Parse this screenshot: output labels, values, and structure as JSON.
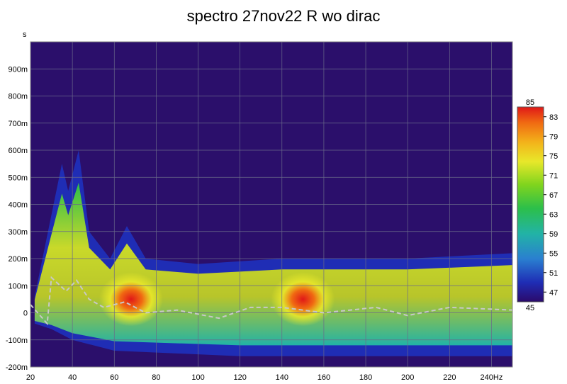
{
  "chart_data": {
    "type": "heatmap",
    "title": "spectro 27nov22 R wo dirac",
    "ylabel": "s",
    "x_ticks": [
      "20",
      "40",
      "60",
      "80",
      "100",
      "120",
      "140",
      "160",
      "180",
      "200",
      "220",
      "240Hz"
    ],
    "y_ticks": [
      "900m",
      "800m",
      "700m",
      "600m",
      "500m",
      "400m",
      "300m",
      "200m",
      "100m",
      "0",
      "-100m",
      "-200m"
    ],
    "xlim": [
      20,
      250
    ],
    "ylim": [
      -0.2,
      1.0
    ],
    "x_unit": "Hz",
    "y_unit": "s",
    "colorbar": {
      "min": 45,
      "max": 85,
      "ticks": [
        "83",
        "79",
        "75",
        "71",
        "67",
        "63",
        "59",
        "55",
        "51",
        "47"
      ],
      "colors": [
        "#2b0a6b",
        "#1f2db5",
        "#2a7fd0",
        "#22b3a6",
        "#2cbf4a",
        "#7fd41e",
        "#e8e82a",
        "#f3b21a",
        "#f06a12",
        "#e01818"
      ]
    },
    "background_color": "#2b0f6b",
    "grid": true,
    "legend": "right",
    "peak_hotspots": [
      {
        "freq_hz": 68,
        "time_s": 0.05,
        "level": 84
      },
      {
        "freq_hz": 150,
        "time_s": 0.05,
        "level": 82
      }
    ],
    "decay_envelope": [
      {
        "freq_hz": 22,
        "time_s": 0.06
      },
      {
        "freq_hz": 35,
        "time_s": 0.55
      },
      {
        "freq_hz": 38,
        "time_s": 0.45
      },
      {
        "freq_hz": 43,
        "time_s": 0.6
      },
      {
        "freq_hz": 48,
        "time_s": 0.3
      },
      {
        "freq_hz": 58,
        "time_s": 0.2
      },
      {
        "freq_hz": 66,
        "time_s": 0.32
      },
      {
        "freq_hz": 75,
        "time_s": 0.2
      },
      {
        "freq_hz": 100,
        "time_s": 0.18
      },
      {
        "freq_hz": 140,
        "time_s": 0.2
      },
      {
        "freq_hz": 200,
        "time_s": 0.2
      },
      {
        "freq_hz": 250,
        "time_s": 0.22
      }
    ],
    "peak_time_curve": [
      {
        "freq_hz": 20,
        "time_s": 0.03
      },
      {
        "freq_hz": 28,
        "time_s": -0.04
      },
      {
        "freq_hz": 30,
        "time_s": 0.13
      },
      {
        "freq_hz": 37,
        "time_s": 0.08
      },
      {
        "freq_hz": 42,
        "time_s": 0.12
      },
      {
        "freq_hz": 48,
        "time_s": 0.05
      },
      {
        "freq_hz": 55,
        "time_s": 0.02
      },
      {
        "freq_hz": 65,
        "time_s": 0.04
      },
      {
        "freq_hz": 75,
        "time_s": 0.0
      },
      {
        "freq_hz": 90,
        "time_s": 0.01
      },
      {
        "freq_hz": 110,
        "time_s": -0.02
      },
      {
        "freq_hz": 125,
        "time_s": 0.02
      },
      {
        "freq_hz": 140,
        "time_s": 0.02
      },
      {
        "freq_hz": 160,
        "time_s": 0.0
      },
      {
        "freq_hz": 185,
        "time_s": 0.02
      },
      {
        "freq_hz": 200,
        "time_s": -0.01
      },
      {
        "freq_hz": 220,
        "time_s": 0.02
      },
      {
        "freq_hz": 250,
        "time_s": 0.01
      }
    ]
  }
}
